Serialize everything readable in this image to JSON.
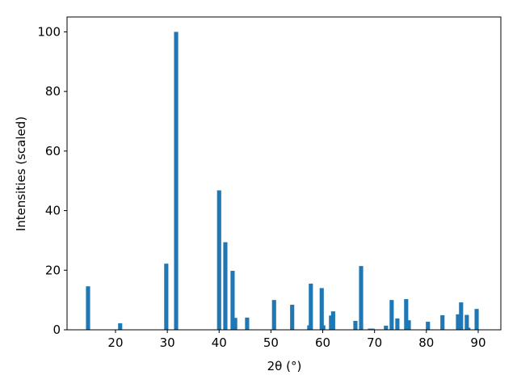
{
  "chart_data": {
    "type": "bar",
    "xlabel": "2θ (°)",
    "ylabel": "Intensities (scaled)",
    "color": "#1f77b4",
    "x": [
      14.7,
      20.9,
      29.8,
      31.7,
      40.0,
      41.2,
      42.6,
      43.1,
      45.4,
      50.6,
      54.1,
      57.4,
      57.7,
      59.8,
      60.1,
      61.6,
      62.0,
      66.3,
      67.4,
      69.1,
      69.6,
      72.2,
      73.3,
      74.4,
      76.1,
      76.6,
      80.3,
      83.1,
      86.1,
      86.7,
      87.8,
      88.1,
      89.7
    ],
    "values": [
      14.6,
      2.2,
      22.2,
      100,
      46.8,
      29.4,
      19.8,
      4,
      4.1,
      10,
      8.4,
      1.5,
      15.5,
      14,
      1.5,
      4.8,
      6.2,
      3,
      21.4,
      0.4,
      0.4,
      1.4,
      10,
      3.8,
      10.3,
      3.2,
      2.7,
      4.9,
      5.2,
      9.2,
      5,
      0.7,
      7
    ],
    "xlim": [
      10.65,
      94.37
    ],
    "ylim": [
      0,
      105
    ],
    "xticks": [
      20,
      30,
      40,
      50,
      60,
      70,
      80,
      90
    ],
    "yticks": [
      0,
      20,
      40,
      60,
      80,
      100
    ]
  }
}
